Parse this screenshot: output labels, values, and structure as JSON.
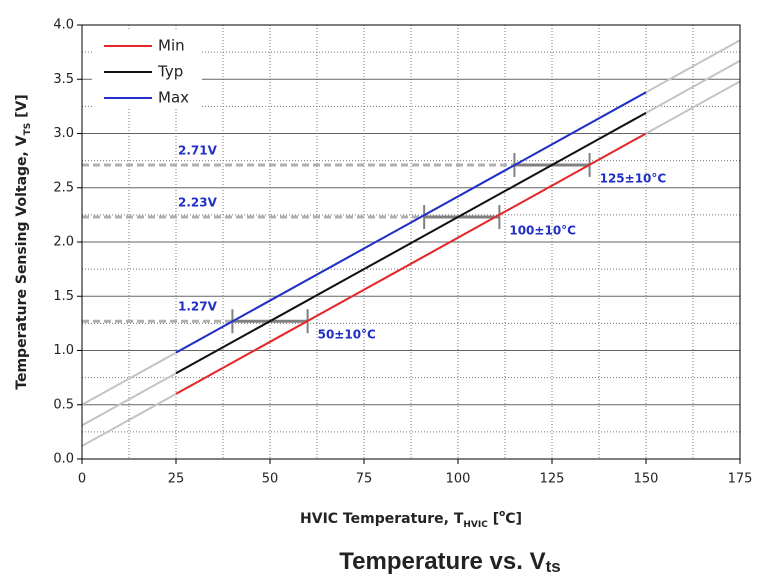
{
  "chart_data": {
    "type": "line",
    "title": {
      "text": "Temperature vs. V",
      "sub": "ts"
    },
    "ylabel": {
      "text": "Temperature Sensing Voltage, V",
      "sub": "TS",
      "unit": " [V]"
    },
    "xlabel": {
      "text": "HVIC Temperature, T",
      "sub": "HVIC",
      "open": " [",
      "sup": "o",
      "unit": "C]"
    },
    "xlim": [
      0,
      175
    ],
    "xticks": [
      0,
      25,
      50,
      75,
      100,
      125,
      150,
      175
    ],
    "xticks_minor": [
      12.5,
      37.5,
      62.5,
      87.5,
      112.5,
      137.5,
      162.5
    ],
    "ylim": [
      0,
      4
    ],
    "yticks": [
      {
        "value": 0,
        "label": "0.0"
      },
      {
        "value": 0.5,
        "label": "0.5"
      },
      {
        "value": 1,
        "label": "1.0"
      },
      {
        "value": 1.5,
        "label": "1.5"
      },
      {
        "value": 2,
        "label": "2.0"
      },
      {
        "value": 2.5,
        "label": "2.5"
      },
      {
        "value": 3,
        "label": "3.0"
      },
      {
        "value": 3.5,
        "label": "3.5"
      },
      {
        "value": 4,
        "label": "4.0"
      }
    ],
    "yticks_minor": [
      0.25,
      0.75,
      1.25,
      1.75,
      2.25,
      2.75,
      3.25,
      3.75
    ],
    "grid": true,
    "legend": "upper left",
    "series": [
      {
        "name": "Min",
        "color": "#e8262a",
        "x": [
          25,
          150
        ],
        "values": [
          0.6,
          3.0
        ]
      },
      {
        "name": "Typ",
        "color": "#111111",
        "x": [
          25,
          150
        ],
        "values": [
          0.79,
          3.19
        ]
      },
      {
        "name": "Max",
        "color": "#1f2fc8",
        "x": [
          25,
          150
        ],
        "values": [
          0.98,
          3.38
        ]
      }
    ],
    "extrapolation": {
      "color": "#c4c4c4",
      "series": [
        {
          "x": [
            0,
            175
          ],
          "values": [
            0.5,
            3.86
          ]
        },
        {
          "x": [
            0,
            175
          ],
          "values": [
            0.31,
            3.67
          ]
        },
        {
          "x": [
            0,
            175
          ],
          "values": [
            0.12,
            3.48
          ]
        }
      ]
    },
    "annotations": [
      {
        "text": "2.71V",
        "value": 2.71,
        "label": "125±10°C",
        "x": [
          115,
          135
        ]
      },
      {
        "text": "2.23V",
        "value": 2.23,
        "label": "100±10°C",
        "x": [
          91,
          111
        ]
      },
      {
        "text": "1.27V",
        "value": 1.27,
        "label": "50±10°C",
        "x": [
          40,
          60
        ]
      }
    ]
  }
}
